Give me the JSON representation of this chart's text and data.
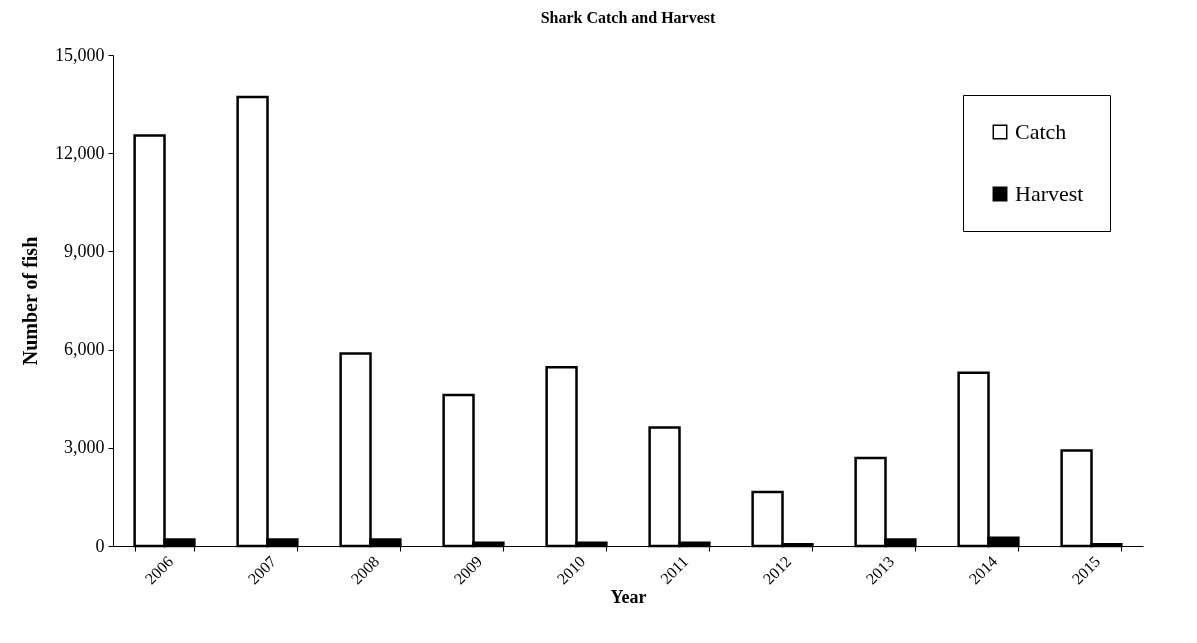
{
  "chart_data": {
    "type": "bar",
    "title": "Shark Catch and Harvest",
    "xlabel": "Year",
    "ylabel": "Number of fish",
    "categories": [
      "2006",
      "2007",
      "2008",
      "2009",
      "2010",
      "2011",
      "2012",
      "2013",
      "2014",
      "2015"
    ],
    "series": [
      {
        "name": "Catch",
        "color": "#ffffff",
        "values": [
          12540,
          13720,
          5880,
          4610,
          5460,
          3620,
          1650,
          2690,
          5290,
          2920
        ]
      },
      {
        "name": "Harvest",
        "color": "#000000",
        "values": [
          200,
          200,
          200,
          100,
          100,
          100,
          50,
          200,
          250,
          50
        ]
      }
    ],
    "ylim": [
      0,
      15000
    ],
    "yticks": [
      0,
      {
        "value": 3000,
        "label": "3,000"
      },
      {
        "value": 6000,
        "label": "6,000"
      },
      {
        "value": 9000,
        "label": "9,000"
      },
      {
        "value": 12000,
        "label": "12,000"
      },
      {
        "value": 15000,
        "label": "15,000"
      }
    ],
    "grid": false,
    "legend": "top right"
  }
}
